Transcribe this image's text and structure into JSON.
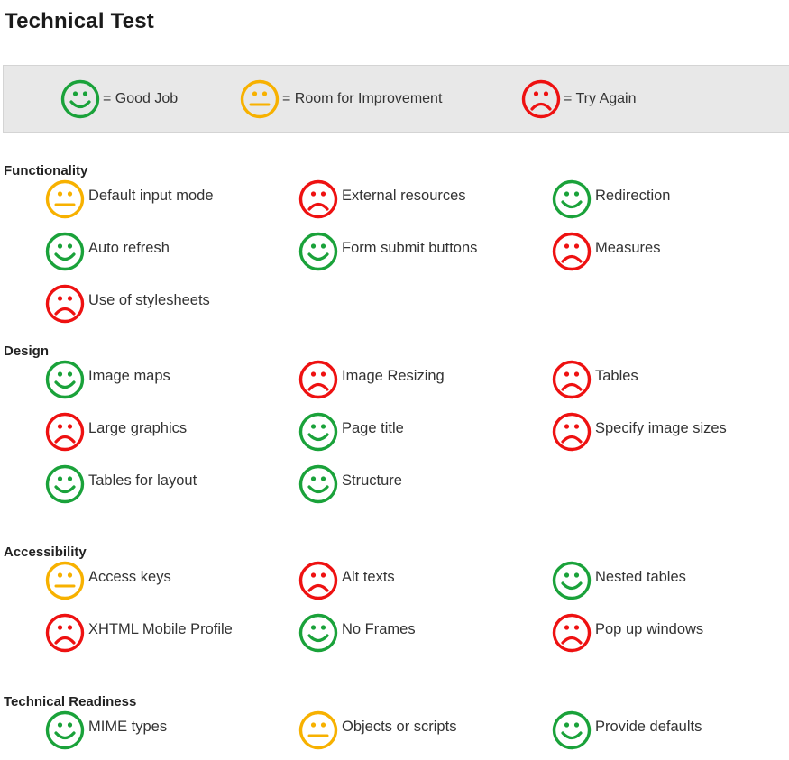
{
  "title": "Technical Test",
  "colors": {
    "good": "#1aa23a",
    "improve": "#f7b100",
    "bad": "#ee1111",
    "legend_bg": "#e8e8e8"
  },
  "legend": [
    {
      "status": "good",
      "icon": "smiley-happy-icon",
      "label": "= Good Job"
    },
    {
      "status": "improve",
      "icon": "smiley-neutral-icon",
      "label": "= Room for Improvement"
    },
    {
      "status": "bad",
      "icon": "smiley-sad-icon",
      "label": "= Try Again"
    }
  ],
  "sections": [
    {
      "heading": "Functionality",
      "items": [
        {
          "label": "Default input mode",
          "status": "improve"
        },
        {
          "label": "External resources",
          "status": "bad"
        },
        {
          "label": "Redirection",
          "status": "good"
        },
        {
          "label": "Auto refresh",
          "status": "good"
        },
        {
          "label": "Form submit buttons",
          "status": "good"
        },
        {
          "label": "Measures",
          "status": "bad"
        },
        {
          "label": "Use of stylesheets",
          "status": "bad"
        }
      ]
    },
    {
      "heading": "Design",
      "items": [
        {
          "label": "Image maps",
          "status": "good"
        },
        {
          "label": "Image Resizing",
          "status": "bad"
        },
        {
          "label": "Tables",
          "status": "bad"
        },
        {
          "label": "Large graphics",
          "status": "bad"
        },
        {
          "label": "Page title",
          "status": "good"
        },
        {
          "label": "Specify image sizes",
          "status": "bad"
        },
        {
          "label": "Tables for layout",
          "status": "good"
        },
        {
          "label": "Structure",
          "status": "good"
        }
      ]
    },
    {
      "heading": "Accessibility",
      "items": [
        {
          "label": "Access keys",
          "status": "improve"
        },
        {
          "label": "Alt texts",
          "status": "bad"
        },
        {
          "label": "Nested tables",
          "status": "good"
        },
        {
          "label": "XHTML Mobile Profile",
          "status": "bad"
        },
        {
          "label": "No Frames",
          "status": "good"
        },
        {
          "label": "Pop up windows",
          "status": "bad"
        }
      ]
    },
    {
      "heading": "Technical Readiness",
      "items": [
        {
          "label": "MIME types",
          "status": "good"
        },
        {
          "label": "Objects or scripts",
          "status": "improve"
        },
        {
          "label": "Provide defaults",
          "status": "good"
        }
      ]
    }
  ]
}
